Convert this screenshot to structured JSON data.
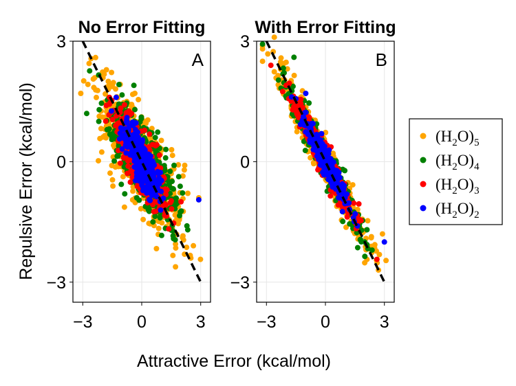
{
  "chart_data": [
    {
      "type": "scatter",
      "title": "No Error Fitting",
      "panel_label": "A",
      "xlabel": "Attractive Error (kcal/mol)",
      "ylabel": "Repulsive Error (kcal/mol)",
      "xlim": [
        -3.5,
        3.5
      ],
      "ylim": [
        -3.5,
        3.0
      ],
      "xticks": [
        "−3",
        "0",
        "3"
      ],
      "yticks": [
        "−3",
        "0",
        "3"
      ],
      "grid": true,
      "reference_line": {
        "style": "dashed",
        "color": "#000000",
        "points": [
          [
            -3,
            3
          ],
          [
            3,
            -3
          ]
        ]
      },
      "series": [
        {
          "name": "(H2O)5",
          "color": "#FFA500",
          "n_points": 700,
          "slope": -0.65,
          "x_sd": 1.05,
          "residual_sd": 0.55,
          "extremes": [
            [
              2.5,
              -2.4
            ],
            [
              -3.1,
              1.7
            ],
            [
              -1.7,
              2.0
            ],
            [
              2.9,
              -0.9
            ]
          ]
        },
        {
          "name": "(H2O)4",
          "color": "#008000",
          "n_points": 550,
          "slope": -0.65,
          "x_sd": 0.85,
          "residual_sd": 0.45,
          "extremes": [
            [
              -0.4,
              1.9
            ],
            [
              2.3,
              -1.6
            ],
            [
              -2.8,
              1.2
            ]
          ]
        },
        {
          "name": "(H2O)3",
          "color": "#FF0000",
          "n_points": 450,
          "slope": -0.7,
          "x_sd": 0.65,
          "residual_sd": 0.35,
          "extremes": [
            [
              2.0,
              -1.0
            ],
            [
              -1.8,
              1.4
            ]
          ]
        },
        {
          "name": "(H2O)2",
          "color": "#0000FF",
          "n_points": 380,
          "slope": -0.75,
          "x_sd": 0.45,
          "residual_sd": 0.25,
          "extremes": [
            [
              2.9,
              -0.95
            ],
            [
              -1.3,
              1.6
            ]
          ]
        }
      ]
    },
    {
      "type": "scatter",
      "title": "With Error Fitting",
      "panel_label": "B",
      "xlabel": "Attractive Error (kcal/mol)",
      "ylabel": "Repulsive Error (kcal/mol)",
      "xlim": [
        -3.5,
        3.5
      ],
      "ylim": [
        -3.5,
        3.0
      ],
      "xticks": [
        "−3",
        "0",
        "3"
      ],
      "yticks": [
        "−3",
        "0",
        "3"
      ],
      "grid": true,
      "reference_line": {
        "style": "dashed",
        "color": "#000000",
        "points": [
          [
            -3,
            3
          ],
          [
            3,
            -3
          ]
        ]
      },
      "series": [
        {
          "name": "(H2O)5",
          "color": "#FFA500",
          "n_points": 650,
          "slope": -0.93,
          "x_sd": 1.05,
          "residual_sd": 0.25,
          "extremes": [
            [
              -2.6,
              3.1
            ],
            [
              2.7,
              -2.7
            ],
            [
              -3.2,
              2.5
            ],
            [
              2.9,
              -1.8
            ]
          ]
        },
        {
          "name": "(H2O)4",
          "color": "#008000",
          "n_points": 520,
          "slope": -0.93,
          "x_sd": 0.9,
          "residual_sd": 0.22,
          "extremes": [
            [
              -1.6,
              2.6
            ],
            [
              2.0,
              -2.0
            ]
          ]
        },
        {
          "name": "(H2O)3",
          "color": "#FF0000",
          "n_points": 420,
          "slope": -0.93,
          "x_sd": 0.75,
          "residual_sd": 0.2,
          "extremes": [
            [
              -2.0,
              1.9
            ]
          ]
        },
        {
          "name": "(H2O)2",
          "color": "#0000FF",
          "n_points": 350,
          "slope": -0.93,
          "x_sd": 0.55,
          "residual_sd": 0.16,
          "extremes": [
            [
              3.0,
              -2.0
            ],
            [
              -1.0,
              1.7
            ]
          ]
        }
      ]
    }
  ],
  "shared_xlabel": "Attractive Error (kcal/mol)",
  "shared_ylabel": "Repulsive Error (kcal/mol)",
  "legend": {
    "placement": "right",
    "entries": [
      {
        "base": "(H",
        "sub1": "2",
        "mid": "O)",
        "sub2": "5",
        "color": "#FFA500"
      },
      {
        "base": "(H",
        "sub1": "2",
        "mid": "O)",
        "sub2": "4",
        "color": "#008000"
      },
      {
        "base": "(H",
        "sub1": "2",
        "mid": "O)",
        "sub2": "3",
        "color": "#FF0000"
      },
      {
        "base": "(H",
        "sub1": "2",
        "mid": "O)",
        "sub2": "2",
        "color": "#0000FF"
      }
    ]
  }
}
